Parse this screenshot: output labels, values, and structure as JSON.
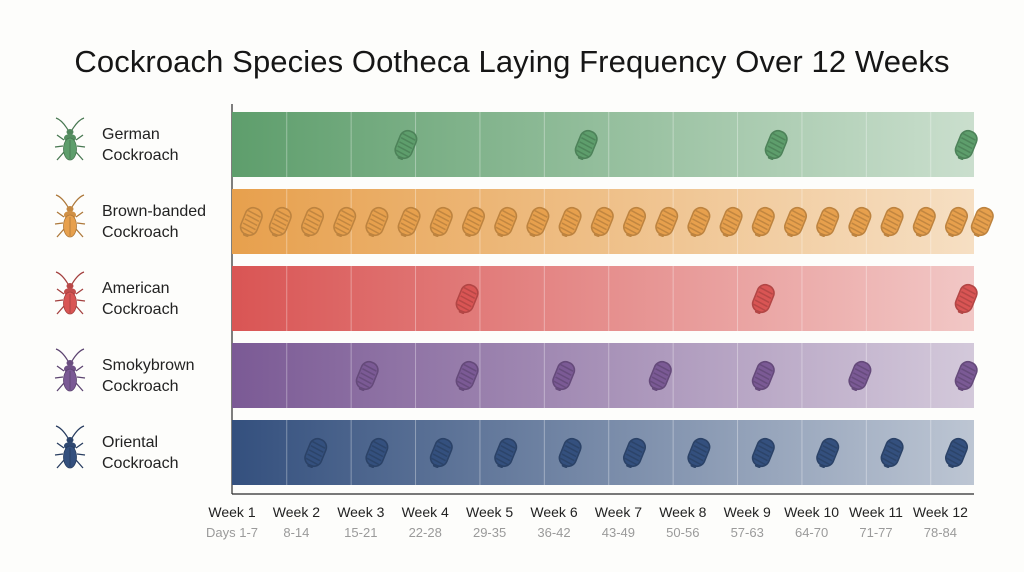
{
  "chart_data": {
    "type": "timeline",
    "title": "Cockroach Species Ootheca Laying Frequency Over 12 Weeks",
    "x_ticks": [
      {
        "label": "Week 1",
        "sub": "Days 1-7"
      },
      {
        "label": "Week 2",
        "sub": "8-14"
      },
      {
        "label": "Week 3",
        "sub": "15-21"
      },
      {
        "label": "Week 4",
        "sub": "22-28"
      },
      {
        "label": "Week 5",
        "sub": "29-35"
      },
      {
        "label": "Week 6",
        "sub": "36-42"
      },
      {
        "label": "Week 7",
        "sub": "43-49"
      },
      {
        "label": "Week 8",
        "sub": "50-56"
      },
      {
        "label": "Week 9",
        "sub": "57-63"
      },
      {
        "label": "Week 10",
        "sub": "64-70"
      },
      {
        "label": "Week 11",
        "sub": "71-77"
      },
      {
        "label": "Week 12",
        "sub": "78-84"
      }
    ],
    "series": [
      {
        "name": "German Cockroach",
        "color": "#5e9e6c",
        "icon": "green-cockroach-icon",
        "ootheca_weeks": [
          3.5,
          6.3,
          9.25,
          12.2
        ]
      },
      {
        "name": "Brown-banded Cockroach",
        "color": "#e7a04d",
        "icon": "orange-cockroach-icon",
        "ootheca_weeks": [
          1.1,
          1.55,
          2.05,
          2.55,
          3.05,
          3.55,
          4.05,
          4.55,
          5.05,
          5.55,
          6.05,
          6.55,
          7.05,
          7.55,
          8.05,
          8.55,
          9.05,
          9.55,
          10.05,
          10.55,
          11.05,
          11.55,
          12.05,
          12.45
        ]
      },
      {
        "name": "American Cockroach",
        "color": "#d95554",
        "icon": "red-cockroach-icon",
        "ootheca_weeks": [
          4.45,
          9.05,
          12.2
        ]
      },
      {
        "name": "Smokybrown Cockroach",
        "color": "#7b5a95",
        "icon": "purple-cockroach-icon",
        "ootheca_weeks": [
          2.9,
          4.45,
          5.95,
          7.45,
          9.05,
          10.55,
          12.2
        ]
      },
      {
        "name": "Oriental Cockroach",
        "color": "#34507e",
        "icon": "navy-cockroach-icon",
        "ootheca_weeks": [
          2.1,
          3.05,
          4.05,
          5.05,
          6.05,
          7.05,
          8.05,
          9.05,
          10.05,
          11.05,
          12.05
        ]
      }
    ],
    "grid": true
  }
}
